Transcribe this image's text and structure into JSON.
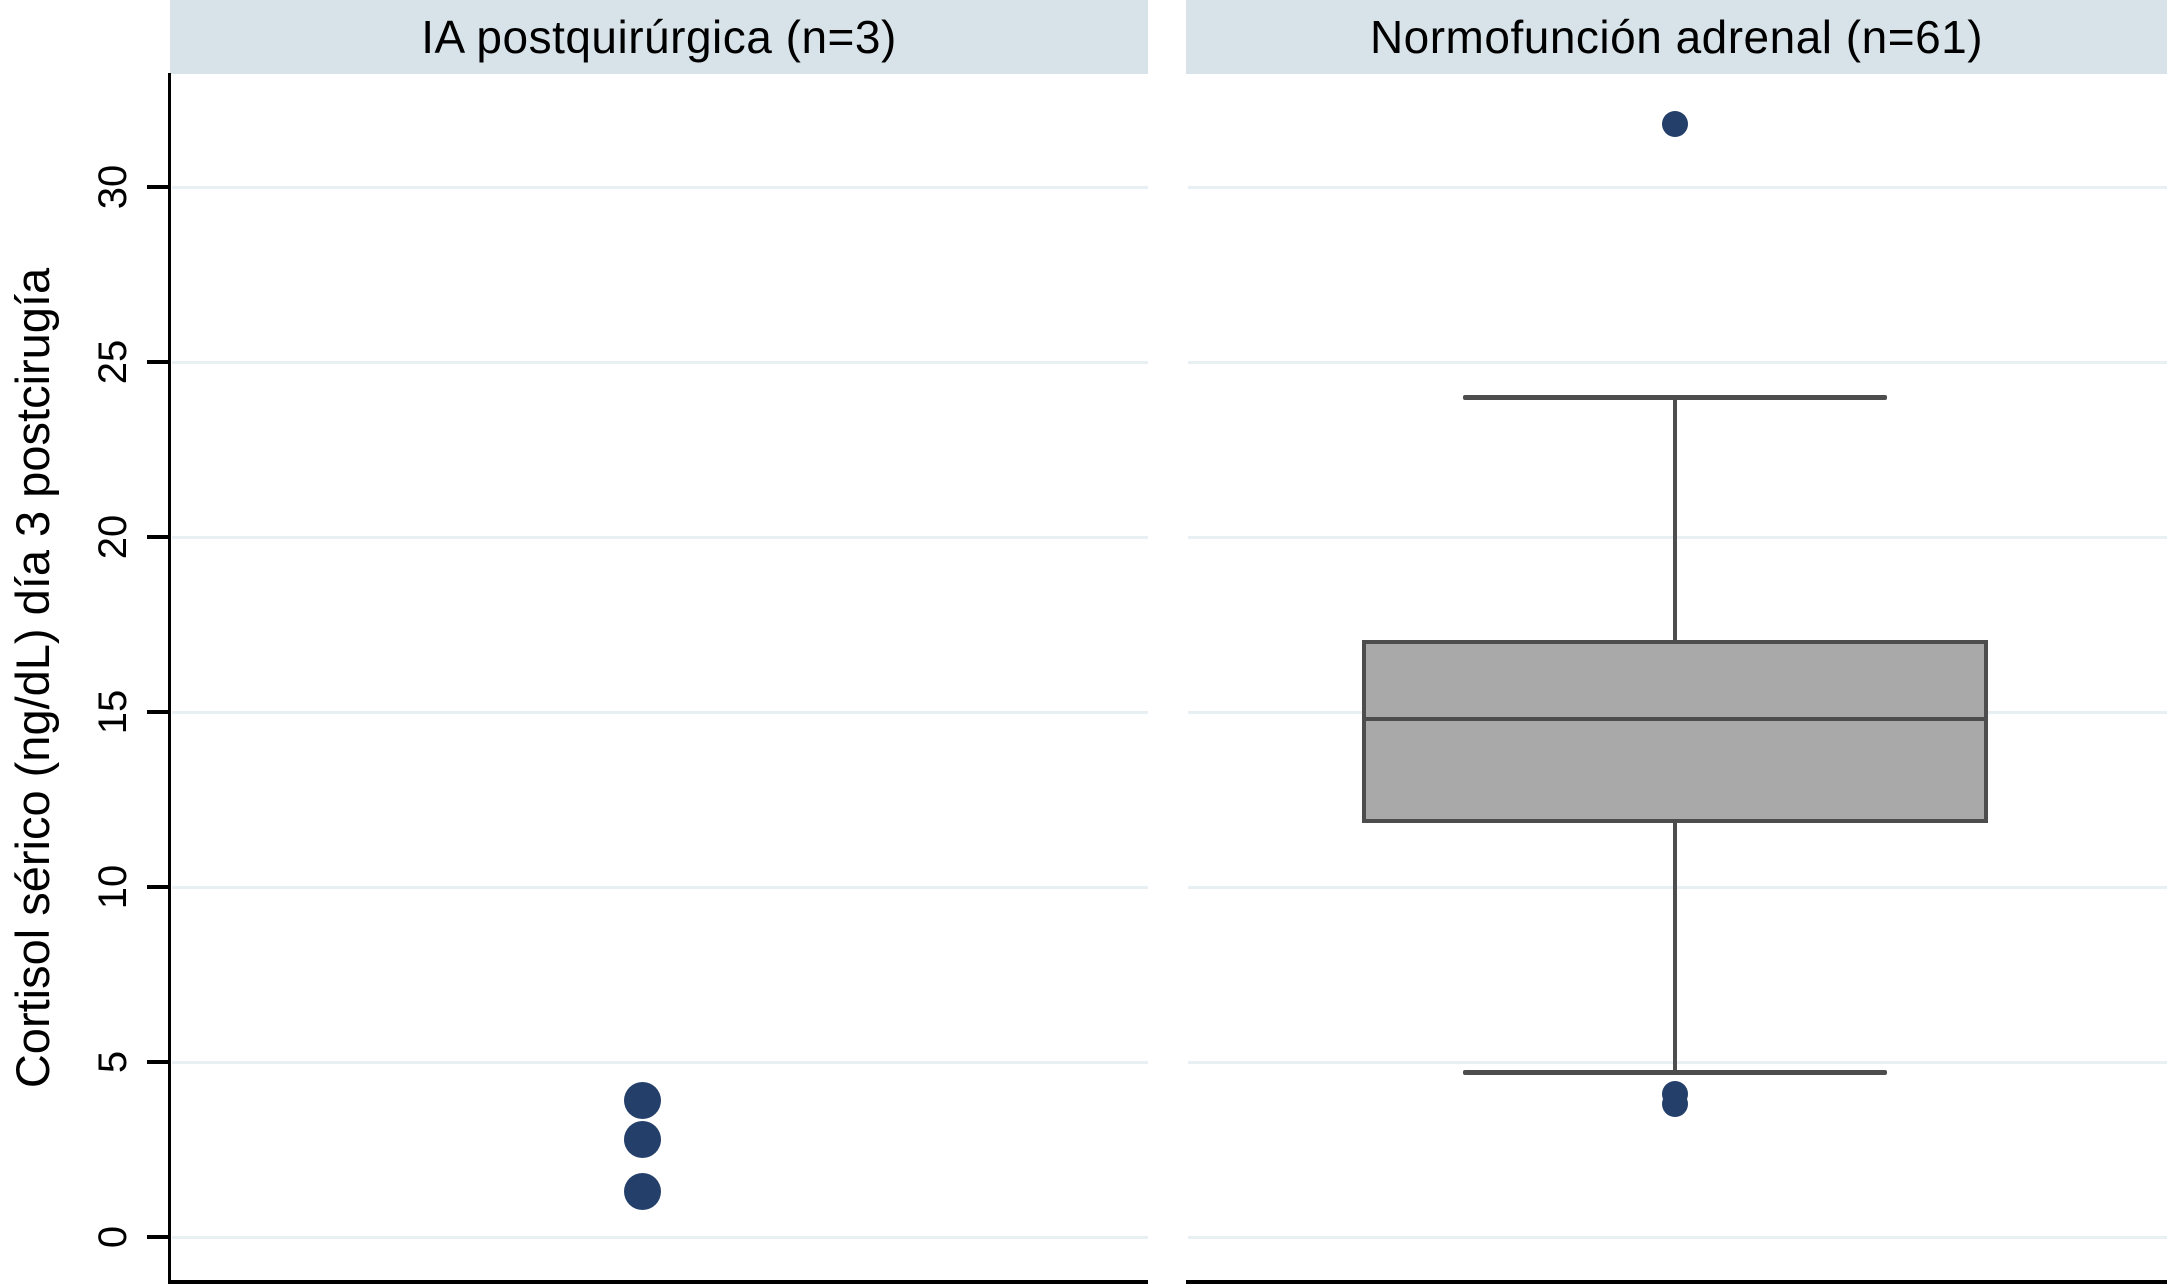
{
  "figure": {
    "ylabel": "Cortisol sérico (ng/dL) día 3 postcirugía",
    "panels": [
      {
        "title": "IA postquirúrgica (n=3)"
      },
      {
        "title": "Normofunción adrenal (n=61)"
      }
    ]
  },
  "chart_data": {
    "type": "boxplot",
    "ylabel": "Cortisol sérico (ng/dL) día 3 postcirugía",
    "ylim": [
      -1.3,
      33.3
    ],
    "yticks": [
      0,
      5,
      10,
      15,
      20,
      25,
      30
    ],
    "grid": true,
    "legend": "none",
    "panels": [
      {
        "title": "IA postquirúrgica (n=3)",
        "n": 3,
        "kind": "points",
        "points": [
          3.9,
          2.8,
          1.3
        ]
      },
      {
        "title": "Normofunción adrenal (n=61)",
        "n": 61,
        "kind": "box",
        "box": {
          "q1": 11.9,
          "median": 14.8,
          "q3": 17.0,
          "whisker_low": 4.7,
          "whisker_high": 24.0
        },
        "outliers": [
          31.8,
          4.1,
          3.8
        ]
      }
    ],
    "colors": {
      "band": "#d8e3e9",
      "gridline": "#e8f0f4",
      "marker": "#24406a",
      "box_fill": "#a9a9a9",
      "box_border": "#4d4d4d",
      "axis": "#000000"
    }
  }
}
